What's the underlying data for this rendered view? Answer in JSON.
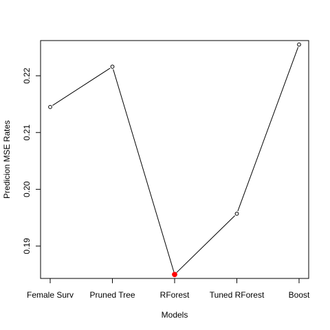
{
  "chart_data": {
    "type": "line",
    "categories": [
      "Female Surv",
      "Pruned Tree",
      "RForest",
      "Tuned RForest",
      "Boost"
    ],
    "values": [
      0.2145,
      0.2216,
      0.185,
      0.1957,
      0.2255
    ],
    "xlabel": "Models",
    "ylabel": "Predicion MSE Rates",
    "ylim": [
      0.1843,
      0.2262
    ],
    "yticks": [
      0.19,
      0.2,
      0.21,
      0.22
    ],
    "ytick_labels": [
      "0.19",
      "0.20",
      "0.21",
      "0.22"
    ],
    "highlight_index": 2,
    "colors": {
      "line": "#000000",
      "marker": "#000000",
      "highlight": "#ff0000"
    },
    "grid": false,
    "marker": "open-circle"
  }
}
